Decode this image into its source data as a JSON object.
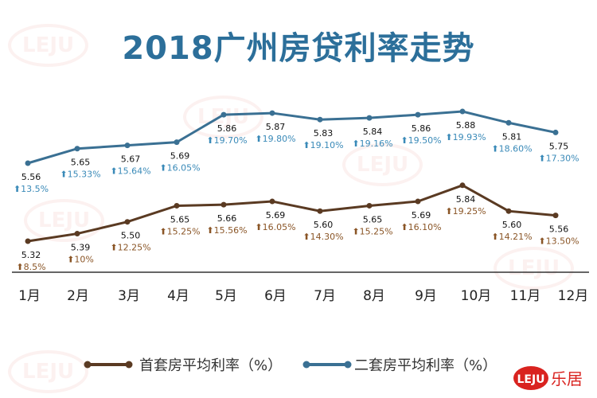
{
  "title": "2018广州房贷利率走势",
  "chart_data": {
    "type": "line",
    "title": "2018广州房贷利率走势",
    "categories": [
      "1月",
      "2月",
      "3月",
      "4月",
      "5月",
      "6月",
      "7月",
      "8月",
      "9月",
      "10月",
      "11月",
      "12月"
    ],
    "series": [
      {
        "name": "首套房平均利率（%）",
        "color": "#5a3a22",
        "label_color": "#8a5526",
        "values": [
          5.32,
          5.39,
          5.5,
          5.65,
          5.66,
          5.69,
          5.6,
          5.65,
          5.69,
          5.84,
          5.6,
          5.56
        ],
        "changes": [
          "8.5%",
          "10%",
          "12.25%",
          "15.25%",
          "15.56%",
          "16.05%",
          "14.30%",
          "15.25%",
          "16.10%",
          "19.25%",
          "14.21%",
          "13.50%"
        ]
      },
      {
        "name": "二套房平均利率（%）",
        "color": "#3a7093",
        "label_color": "#3a8ab8",
        "values": [
          5.56,
          5.65,
          5.67,
          5.69,
          5.86,
          5.87,
          5.83,
          5.84,
          5.86,
          5.88,
          5.81,
          5.75
        ],
        "changes": [
          "13.5%",
          "15.33%",
          "15.64%",
          "16.05%",
          "19.70%",
          "19.80%",
          "19.10%",
          "19.16%",
          "19.50%",
          "19.93%",
          "18.60%",
          "17.30%"
        ]
      }
    ],
    "change_icon": "up-arrow-icon",
    "legend_position": "bottom",
    "grid": false
  },
  "logo": {
    "text": "LEJU",
    "brand": "乐居",
    "color": "#d9231f"
  },
  "watermark": "LEJU 乐居"
}
